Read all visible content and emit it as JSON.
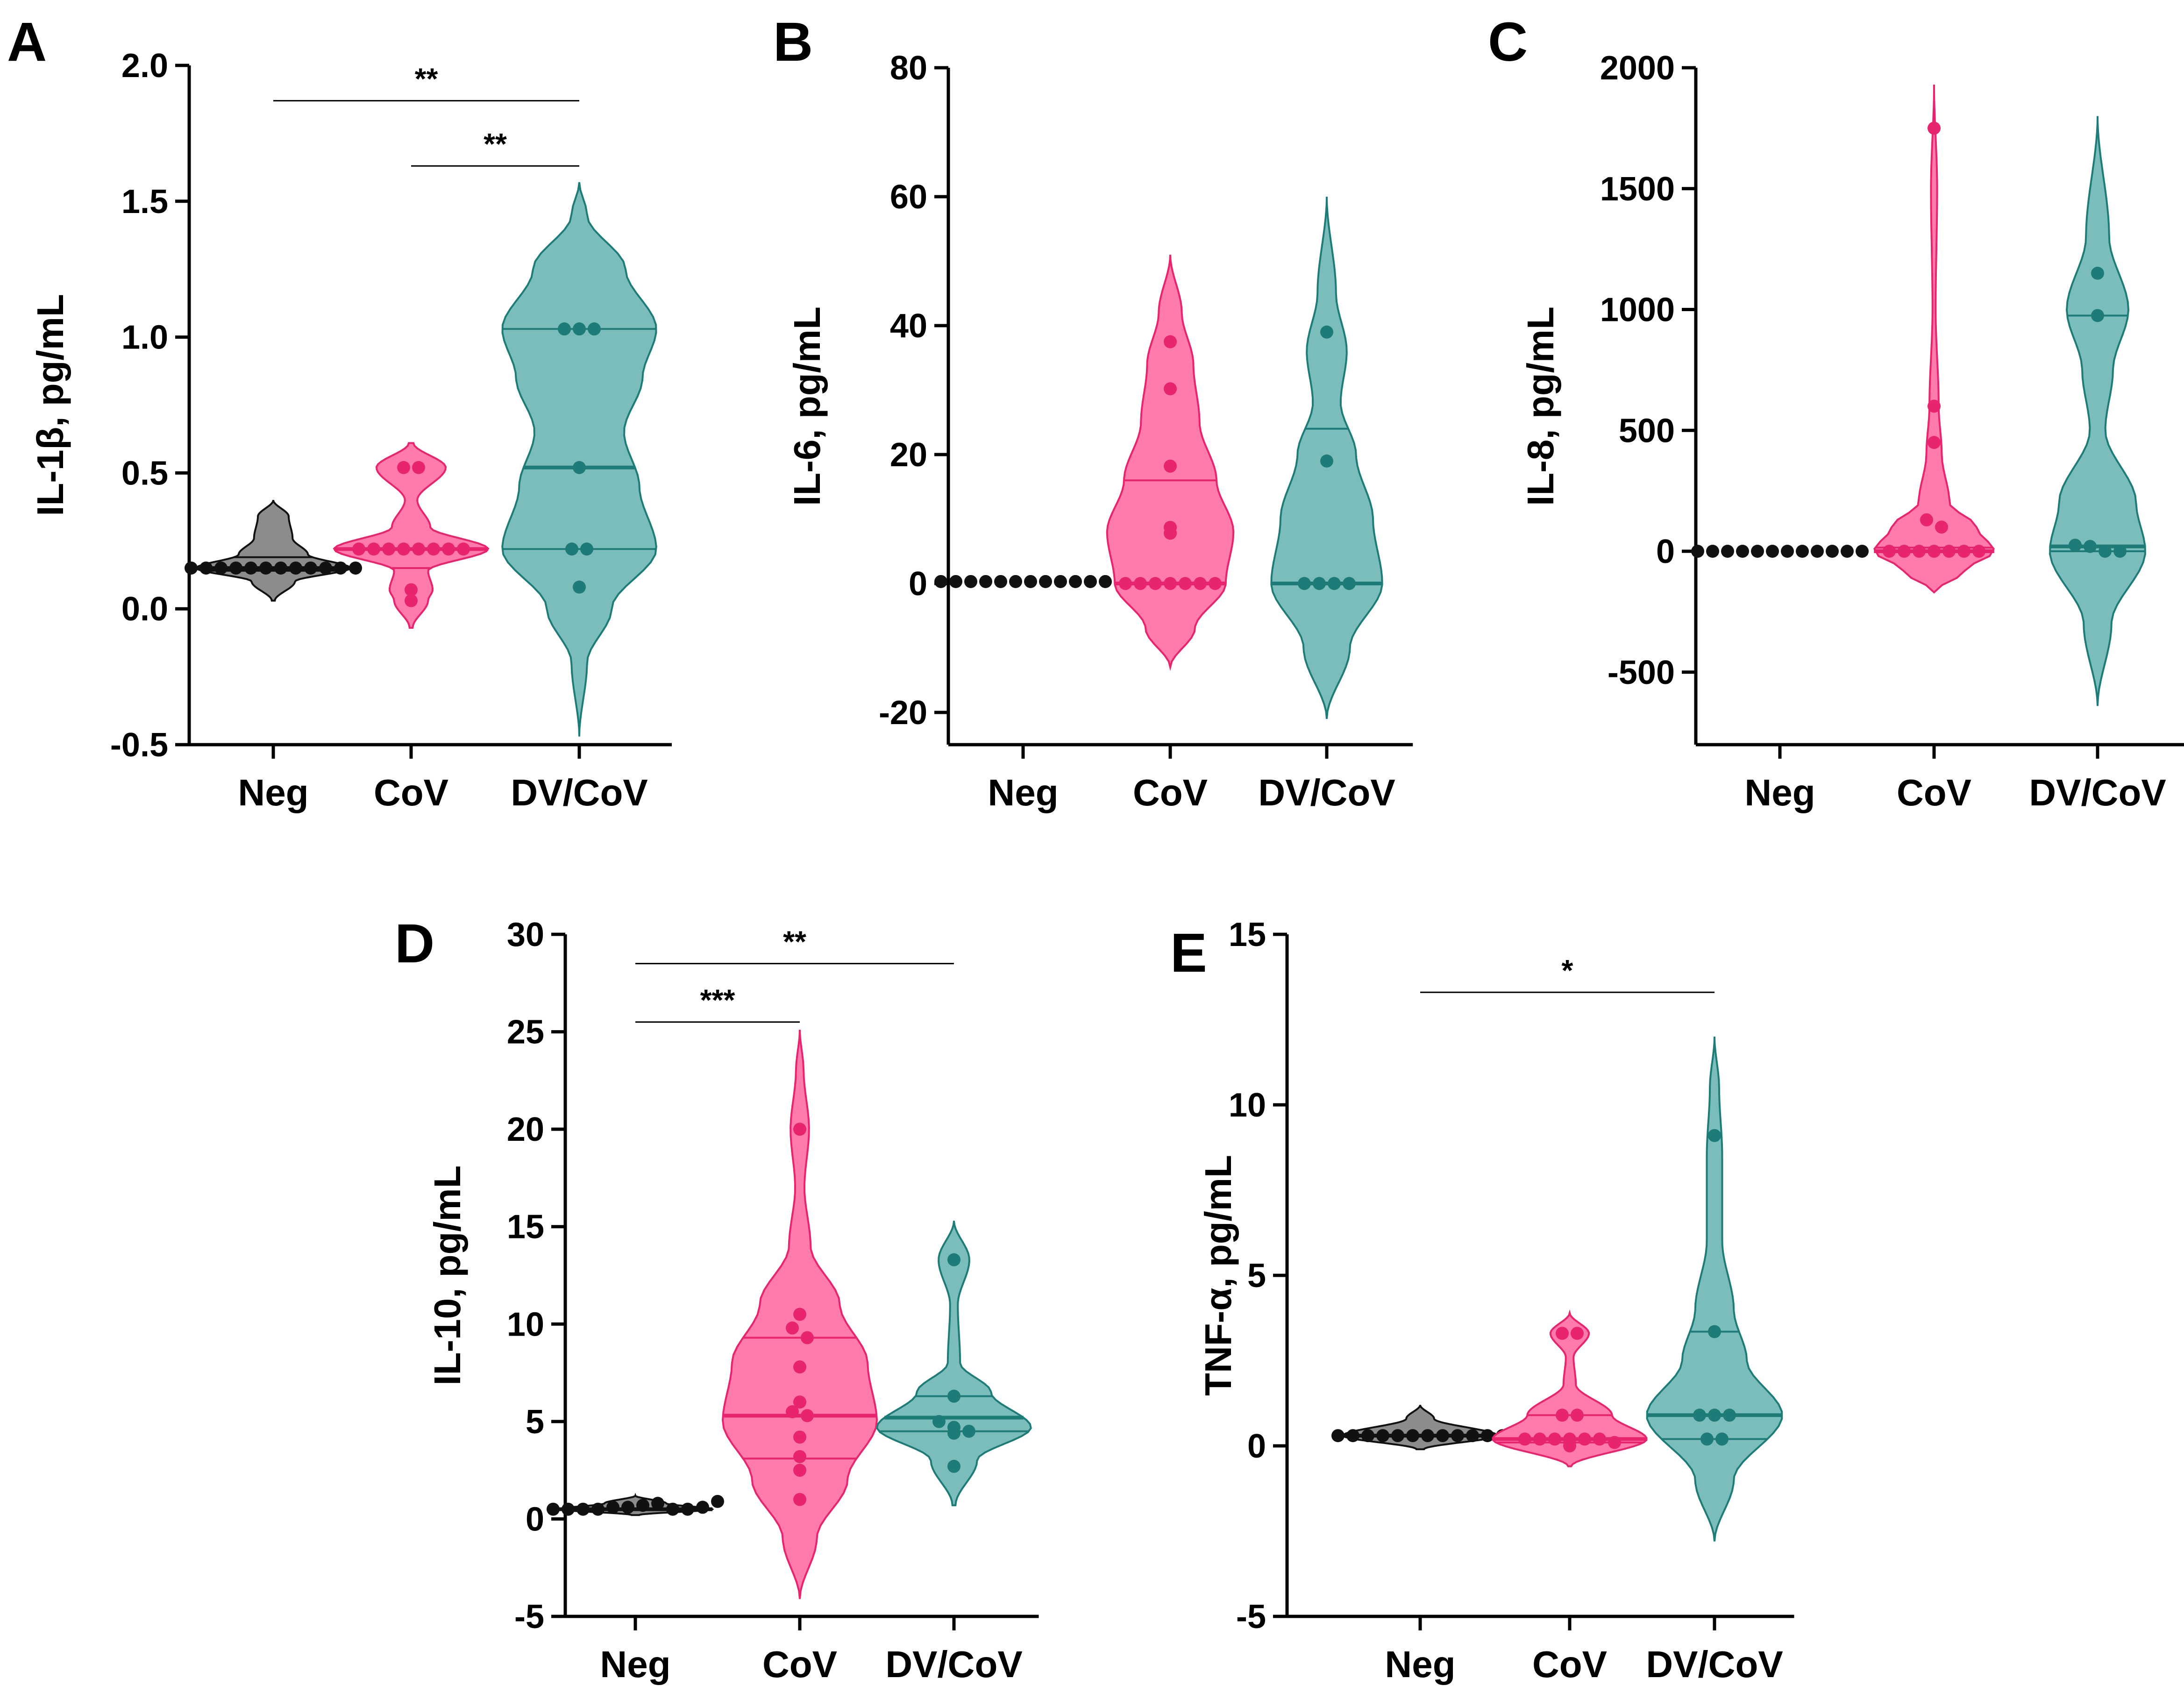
{
  "colors": {
    "Neg": "#8c8c8c",
    "CoV": "#ff7bac",
    "DV/CoV": "#7bbdbb",
    "Neg_dark": "#111111",
    "CoV_dark": "#e8246f",
    "DV/CoV_dark": "#1e7c78"
  },
  "chart_data": [
    {
      "id": "A",
      "panel": "A",
      "type": "violin",
      "ylabel": "IL-1β, pg/mL",
      "ylim": [
        -0.5,
        2.0
      ],
      "yticks": [
        -0.5,
        0.0,
        0.5,
        1.0,
        1.5,
        2.0
      ],
      "ytick_labels": [
        "-0.5",
        "0.0",
        "0.5",
        "1.0",
        "1.5",
        "2.0"
      ],
      "categories": [
        "Neg",
        "CoV",
        "DV/CoV"
      ],
      "groups": [
        {
          "name": "Neg",
          "range": [
            0.03,
            0.4
          ],
          "median": 0.15,
          "quartiles": [
            0.14,
            0.19
          ],
          "points": [
            0.15,
            0.15,
            0.15,
            0.15,
            0.15,
            0.15,
            0.15,
            0.15,
            0.15,
            0.15,
            0.15,
            0.15
          ],
          "shape": [
            [
              0.03,
              0.02
            ],
            [
              0.1,
              0.28
            ],
            [
              0.15,
              1.0
            ],
            [
              0.2,
              0.45
            ],
            [
              0.26,
              0.25
            ],
            [
              0.34,
              0.2
            ],
            [
              0.4,
              0.0
            ]
          ]
        },
        {
          "name": "CoV",
          "range": [
            -0.07,
            0.61
          ],
          "median": 0.22,
          "quartiles": [
            0.15,
            0.22
          ],
          "points": [
            0.52,
            0.52,
            0.22,
            0.22,
            0.22,
            0.22,
            0.22,
            0.22,
            0.22,
            0.22,
            0.07,
            0.03
          ],
          "shape": [
            [
              -0.07,
              0.02
            ],
            [
              0.03,
              0.22
            ],
            [
              0.07,
              0.28
            ],
            [
              0.14,
              0.22
            ],
            [
              0.22,
              1.0
            ],
            [
              0.3,
              0.25
            ],
            [
              0.4,
              0.08
            ],
            [
              0.52,
              0.45
            ],
            [
              0.61,
              0.03
            ]
          ]
        },
        {
          "name": "DV/CoV",
          "range": [
            -0.47,
            1.57
          ],
          "median": 0.52,
          "quartiles": [
            0.22,
            1.03
          ],
          "points": [
            1.03,
            1.03,
            1.03,
            0.52,
            0.22,
            0.22,
            0.08
          ],
          "shape": [
            [
              -0.47,
              0.0
            ],
            [
              -0.2,
              0.1
            ],
            [
              0.0,
              0.42
            ],
            [
              0.22,
              1.0
            ],
            [
              0.45,
              0.78
            ],
            [
              0.65,
              0.58
            ],
            [
              0.85,
              0.82
            ],
            [
              1.03,
              1.0
            ],
            [
              1.25,
              0.6
            ],
            [
              1.45,
              0.1
            ],
            [
              1.57,
              0.0
            ]
          ]
        }
      ],
      "significance": [
        {
          "from": "Neg",
          "to": "DV/CoV",
          "y": 1.87,
          "label": "**"
        },
        {
          "from": "CoV",
          "to": "DV/CoV",
          "y": 1.63,
          "label": "**"
        }
      ]
    },
    {
      "id": "B",
      "panel": "B",
      "type": "violin",
      "ylabel": "IL-6, pg/mL",
      "ylim": [
        -25,
        80
      ],
      "yticks": [
        -20,
        0,
        20,
        40,
        60,
        80
      ],
      "ytick_labels": [
        "-20",
        "0",
        "20",
        "40",
        "60",
        "80"
      ],
      "categories": [
        "Neg",
        "CoV",
        "DV/CoV"
      ],
      "groups": [
        {
          "name": "Neg",
          "range": [
            0,
            0
          ],
          "median": null,
          "quartiles": [],
          "points": [
            0.3,
            0.3,
            0.3,
            0.3,
            0.3,
            0.3,
            0.3,
            0.3,
            0.3,
            0.3,
            0.3,
            0.3
          ],
          "shape": []
        },
        {
          "name": "CoV",
          "range": [
            -13,
            51
          ],
          "median": 0,
          "quartiles": [
            0,
            16
          ],
          "points": [
            37.5,
            30.2,
            18.2,
            8.7,
            7.8,
            0,
            0,
            0,
            0,
            0,
            0,
            0
          ],
          "shape": [
            [
              -13,
              0.0
            ],
            [
              -7,
              0.32
            ],
            [
              0,
              0.72
            ],
            [
              8,
              0.82
            ],
            [
              16,
              0.6
            ],
            [
              25,
              0.38
            ],
            [
              34,
              0.3
            ],
            [
              42,
              0.15
            ],
            [
              51,
              0.0
            ]
          ]
        },
        {
          "name": "DV/CoV",
          "range": [
            -21,
            60
          ],
          "median": 0,
          "quartiles": [
            0,
            24
          ],
          "points": [
            39,
            19,
            0,
            0,
            0,
            0
          ],
          "shape": [
            [
              -21,
              0.0
            ],
            [
              -10,
              0.3
            ],
            [
              0,
              0.72
            ],
            [
              10,
              0.6
            ],
            [
              20,
              0.38
            ],
            [
              28,
              0.18
            ],
            [
              36,
              0.26
            ],
            [
              45,
              0.12
            ],
            [
              60,
              0.0
            ]
          ]
        }
      ],
      "significance": []
    },
    {
      "id": "C",
      "panel": "C",
      "type": "violin",
      "ylabel": "IL-8, pg/mL",
      "ylim": [
        -800,
        2000
      ],
      "yticks": [
        -500,
        0,
        500,
        1000,
        1500,
        2000
      ],
      "ytick_labels": [
        "-500",
        "0",
        "500",
        "1000",
        "1500",
        "2000"
      ],
      "categories": [
        "Neg",
        "CoV",
        "DV/CoV"
      ],
      "groups": [
        {
          "name": "Neg",
          "range": [
            0,
            0
          ],
          "median": null,
          "quartiles": [],
          "points": [
            0,
            0,
            0,
            0,
            0,
            0,
            0,
            0,
            0,
            0,
            0,
            0
          ],
          "shape": []
        },
        {
          "name": "CoV",
          "range": [
            -170,
            1930
          ],
          "median": 0,
          "quartiles": [
            0,
            15
          ],
          "points": [
            1750,
            600,
            450,
            130,
            100,
            0,
            0,
            0,
            0,
            0,
            0,
            0
          ],
          "shape": [
            [
              -170,
              0.0
            ],
            [
              -80,
              0.4
            ],
            [
              0,
              0.78
            ],
            [
              100,
              0.55
            ],
            [
              200,
              0.2
            ],
            [
              400,
              0.1
            ],
            [
              600,
              0.06
            ],
            [
              1000,
              0.02
            ],
            [
              1500,
              0.04
            ],
            [
              1930,
              0.0
            ]
          ]
        },
        {
          "name": "DV/CoV",
          "range": [
            -640,
            1800
          ],
          "median": 20,
          "quartiles": [
            0,
            975
          ],
          "points": [
            1150,
            975,
            25,
            20,
            0,
            0
          ],
          "shape": [
            [
              -640,
              0.0
            ],
            [
              -300,
              0.18
            ],
            [
              0,
              0.62
            ],
            [
              200,
              0.5
            ],
            [
              500,
              0.1
            ],
            [
              750,
              0.2
            ],
            [
              1000,
              0.4
            ],
            [
              1300,
              0.15
            ],
            [
              1800,
              0.0
            ]
          ]
        }
      ],
      "significance": []
    },
    {
      "id": "D",
      "panel": "D",
      "type": "violin",
      "ylabel": "IL-10, pg/mL",
      "ylim": [
        -5,
        30
      ],
      "yticks": [
        -5,
        0,
        5,
        10,
        15,
        20,
        25,
        30
      ],
      "ytick_labels": [
        "-5",
        "0",
        "5",
        "10",
        "15",
        "20",
        "25",
        "30"
      ],
      "categories": [
        "Neg",
        "CoV",
        "DV/CoV"
      ],
      "groups": [
        {
          "name": "Neg",
          "range": [
            0.2,
            1.2
          ],
          "median": 0.5,
          "quartiles": [],
          "points": [
            0.5,
            0.5,
            0.5,
            0.5,
            0.6,
            0.6,
            0.7,
            0.8,
            0.5,
            0.5,
            0.6,
            0.9
          ],
          "shape": [
            [
              0.2,
              0.05
            ],
            [
              0.5,
              1.0
            ],
            [
              0.8,
              0.4
            ],
            [
              1.2,
              0.0
            ]
          ]
        },
        {
          "name": "CoV",
          "range": [
            -4.1,
            25.1
          ],
          "median": 5.3,
          "quartiles": [
            3.1,
            9.3
          ],
          "points": [
            20,
            10.5,
            9.8,
            9.3,
            7.8,
            6.0,
            5.5,
            5.3,
            4.2,
            3.2,
            2.5,
            1.0
          ],
          "shape": [
            [
              -4.1,
              0.0
            ],
            [
              -1,
              0.22
            ],
            [
              2,
              0.62
            ],
            [
              5,
              1.0
            ],
            [
              8,
              0.88
            ],
            [
              11,
              0.52
            ],
            [
              14,
              0.14
            ],
            [
              17,
              0.06
            ],
            [
              20,
              0.12
            ],
            [
              23,
              0.05
            ],
            [
              25.1,
              0.0
            ]
          ]
        },
        {
          "name": "DV/CoV",
          "range": [
            0.7,
            15.3
          ],
          "median": 5.2,
          "quartiles": [
            4.5,
            6.3
          ],
          "points": [
            13.3,
            6.3,
            5.0,
            4.7,
            4.5,
            4.4,
            2.7
          ],
          "shape": [
            [
              0.7,
              0.02
            ],
            [
              3,
              0.3
            ],
            [
              4.7,
              1.0
            ],
            [
              6.5,
              0.48
            ],
            [
              8,
              0.08
            ],
            [
              11,
              0.05
            ],
            [
              13.3,
              0.2
            ],
            [
              15.3,
              0.0
            ]
          ]
        }
      ],
      "significance": [
        {
          "from": "Neg",
          "to": "DV/CoV",
          "y": 28.5,
          "label": "**"
        },
        {
          "from": "Neg",
          "to": "CoV",
          "y": 25.5,
          "label": "***"
        }
      ]
    },
    {
      "id": "E",
      "panel": "E",
      "type": "violin",
      "ylabel": "TNF-α, pg/mL",
      "ylim": [
        -5,
        15
      ],
      "yticks": [
        -5,
        0,
        5,
        10,
        15
      ],
      "ytick_labels": [
        "-5",
        "0",
        "5",
        "10",
        "15"
      ],
      "categories": [
        "Neg",
        "CoV",
        "DV/CoV"
      ],
      "groups": [
        {
          "name": "Neg",
          "range": [
            -0.1,
            1.2
          ],
          "median": 0.3,
          "quartiles": [],
          "points": [
            0.3,
            0.3,
            0.3,
            0.3,
            0.3,
            0.3,
            0.3,
            0.3,
            0.3,
            0.3,
            0.3,
            0.3
          ],
          "shape": [
            [
              -0.1,
              0.05
            ],
            [
              0.3,
              1.0
            ],
            [
              0.8,
              0.18
            ],
            [
              1.2,
              0.0
            ]
          ]
        },
        {
          "name": "CoV",
          "range": [
            -0.6,
            3.9
          ],
          "median": 0.2,
          "quartiles": [
            0.1,
            0.9
          ],
          "points": [
            3.3,
            3.3,
            0.9,
            0.9,
            0.2,
            0.2,
            0.2,
            0.2,
            0.2,
            0.2,
            0.1,
            0.0
          ],
          "shape": [
            [
              -0.6,
              0.02
            ],
            [
              0.2,
              1.0
            ],
            [
              0.9,
              0.55
            ],
            [
              1.8,
              0.08
            ],
            [
              2.6,
              0.05
            ],
            [
              3.3,
              0.25
            ],
            [
              3.9,
              0.0
            ]
          ]
        },
        {
          "name": "DV/CoV",
          "range": [
            -2.8,
            12
          ],
          "median": 0.9,
          "quartiles": [
            0.2,
            3.35
          ],
          "points": [
            9.1,
            3.35,
            0.9,
            0.9,
            0.9,
            0.2,
            0.2
          ],
          "shape": [
            [
              -2.8,
              0.0
            ],
            [
              -1,
              0.25
            ],
            [
              0.9,
              0.88
            ],
            [
              2.5,
              0.42
            ],
            [
              4,
              0.25
            ],
            [
              6,
              0.1
            ],
            [
              8.5,
              0.1
            ],
            [
              10.5,
              0.06
            ],
            [
              12,
              0.0
            ]
          ]
        }
      ],
      "significance": [
        {
          "from": "Neg",
          "to": "DV/CoV",
          "y": 13.3,
          "label": "*"
        }
      ]
    }
  ]
}
